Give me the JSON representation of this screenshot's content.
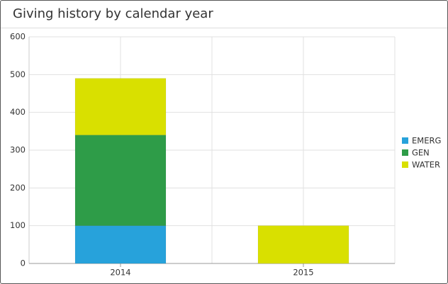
{
  "chart_data": {
    "type": "stacked_bar",
    "title": "Giving history by calendar year",
    "categories": [
      "2014",
      "2015"
    ],
    "series": [
      {
        "name": "EMERG",
        "color": "#27a2db",
        "values": [
          100,
          0
        ]
      },
      {
        "name": "GEN",
        "color": "#2e9c48",
        "values": [
          240,
          0
        ]
      },
      {
        "name": "WATER",
        "color": "#d9e000",
        "values": [
          150,
          100
        ]
      }
    ],
    "ylim": [
      0,
      600
    ],
    "yticks": [
      0,
      100,
      200,
      300,
      400,
      500,
      600
    ],
    "grid": true,
    "legend": "right"
  }
}
